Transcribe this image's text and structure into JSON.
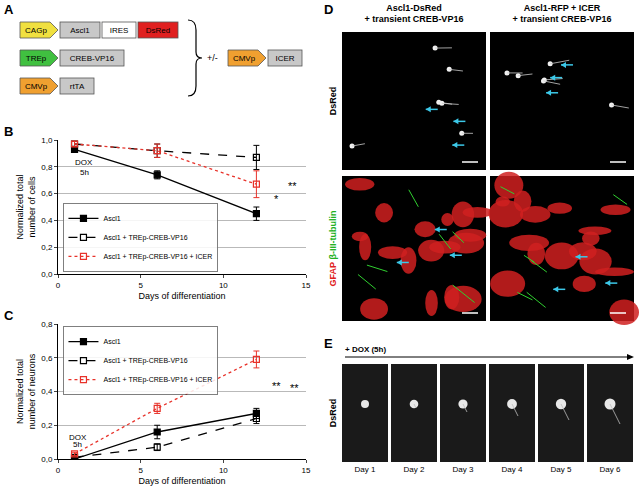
{
  "diagram": {
    "label": "A",
    "constructs": [
      [
        {
          "text": "CAGp",
          "shape": "promoter",
          "color": "#f0e040"
        },
        {
          "text": "Ascl1",
          "shape": "box",
          "color": "#c8c8c8"
        },
        {
          "text": "IRES",
          "shape": "box",
          "color": "#ffffff"
        },
        {
          "text": "DsRed",
          "shape": "box",
          "color": "#e02020"
        }
      ],
      [
        {
          "text": "TREp",
          "shape": "promoter",
          "color": "#40c040"
        },
        {
          "text": "CREB-VP16",
          "shape": "box",
          "color": "#c8c8c8"
        }
      ],
      [
        {
          "text": "CMVp",
          "shape": "promoter",
          "color": "#f0a030"
        },
        {
          "text": "rtTA",
          "shape": "box",
          "color": "#c8c8c8"
        }
      ]
    ],
    "optional_label": "+/-",
    "optional": [
      {
        "text": "CMVp",
        "shape": "promoter",
        "color": "#f0a030"
      },
      {
        "text": "ICER",
        "shape": "box",
        "color": "#c8c8c8"
      }
    ]
  },
  "chart_data": [
    {
      "label": "B",
      "type": "line",
      "x_label": "Days of differentiation",
      "y_label": [
        "Normalized total",
        "number of cells"
      ],
      "xlim": [
        0,
        15
      ],
      "xticks": [
        0,
        5,
        10,
        15
      ],
      "ylim": [
        0,
        1
      ],
      "yticks": [
        {
          "value": 0,
          "label": "0,0"
        },
        {
          "value": 0.2,
          "label": "0,2"
        },
        {
          "value": 0.4,
          "label": "0,4"
        },
        {
          "value": 0.6,
          "label": "0,6"
        },
        {
          "value": 0.8,
          "label": "0,8"
        },
        {
          "value": 1,
          "label": "1,0"
        }
      ],
      "grid": true,
      "legend": "lower left",
      "x": [
        1,
        6,
        12
      ],
      "series": [
        {
          "name": "Ascl1",
          "color": "#000000",
          "line_style": "solid",
          "marker": "square",
          "values": [
            0.93,
            0.74,
            0.45
          ],
          "error": [
            0.02,
            0.03,
            0.05
          ]
        },
        {
          "name": "Ascl1 + TREp-CREB-VP16",
          "color": "#000000",
          "line_style": "dash",
          "marker": "square-open",
          "values": [
            0.97,
            0.92,
            0.87
          ],
          "error": [
            0.02,
            0.05,
            0.09
          ]
        },
        {
          "name": "Ascl1 + TREp-CREB-VP16 + ICER",
          "color": "#e8322a",
          "line_style": "dot",
          "marker": "square-open",
          "values": [
            0.97,
            0.92,
            0.67
          ],
          "error": [
            0.02,
            0.05,
            0.1
          ]
        }
      ],
      "annotations": [
        {
          "text": "DOX",
          "x": 1.6,
          "y": 0.83
        },
        {
          "text": "5h",
          "x": 1.6,
          "y": 0.76
        },
        {
          "text": "*",
          "x": 13.2,
          "y": 0.56
        },
        {
          "text": "**",
          "x": 14.2,
          "y": 0.66
        }
      ]
    },
    {
      "label": "C",
      "type": "line",
      "x_label": "Days of differentiation",
      "y_label": [
        "Normalized total",
        "number of neurons"
      ],
      "xlim": [
        0,
        15
      ],
      "xticks": [
        0,
        5,
        10,
        15
      ],
      "ylim": [
        0,
        0.8
      ],
      "yticks": [
        {
          "value": 0,
          "label": "0,0"
        },
        {
          "value": 0.2,
          "label": "0,2"
        },
        {
          "value": 0.4,
          "label": "0,4"
        },
        {
          "value": 0.6,
          "label": "0,6"
        },
        {
          "value": 0.8,
          "label": "0,8"
        }
      ],
      "grid": true,
      "legend": "upper left",
      "x": [
        1,
        6,
        12
      ],
      "series": [
        {
          "name": "Ascl1",
          "color": "#000000",
          "line_style": "solid",
          "marker": "square",
          "values": [
            0.0,
            0.16,
            0.27
          ],
          "error": [
            0.01,
            0.04,
            0.03
          ]
        },
        {
          "name": "Ascl1 + TREp-CREB-VP16",
          "color": "#000000",
          "line_style": "dash",
          "marker": "square-open",
          "values": [
            0.01,
            0.07,
            0.24
          ],
          "error": [
            0.01,
            0.02,
            0.03
          ]
        },
        {
          "name": "Ascl1 + TREp-CREB-VP16 + ICER",
          "color": "#e8322a",
          "line_style": "dot",
          "marker": "square-open",
          "values": [
            0.03,
            0.3,
            0.59
          ],
          "error": [
            0.01,
            0.03,
            0.05
          ]
        }
      ],
      "annotations": [
        {
          "text": "DOX",
          "x": 1.2,
          "y": 0.13
        },
        {
          "text": "5h",
          "x": 1.2,
          "y": 0.085
        },
        {
          "text": "**",
          "x": 13.2,
          "y": 0.43
        },
        {
          "text": "**",
          "x": 14.3,
          "y": 0.42
        }
      ]
    }
  ],
  "panel_d": {
    "label": "D",
    "columns": [
      [
        "Ascl1-DsRed",
        "+ transient CREB-VP16"
      ],
      [
        "Ascl1-RFP + ICER",
        "+ transient CREB-VP16"
      ]
    ],
    "rows": [
      [
        {
          "text": "DsRed",
          "color": "#000000"
        }
      ],
      [
        {
          "text": "GFAP",
          "color": "#e02020"
        },
        {
          "text": "β-III-tubulin",
          "color": "#20b020"
        }
      ]
    ]
  },
  "panel_e": {
    "label": "E",
    "treatment": "+ DOX (5h)",
    "row_label": "DsRed",
    "frames": [
      "Day 1",
      "Day 2",
      "Day 3",
      "Day 4",
      "Day 5",
      "Day 6"
    ]
  }
}
